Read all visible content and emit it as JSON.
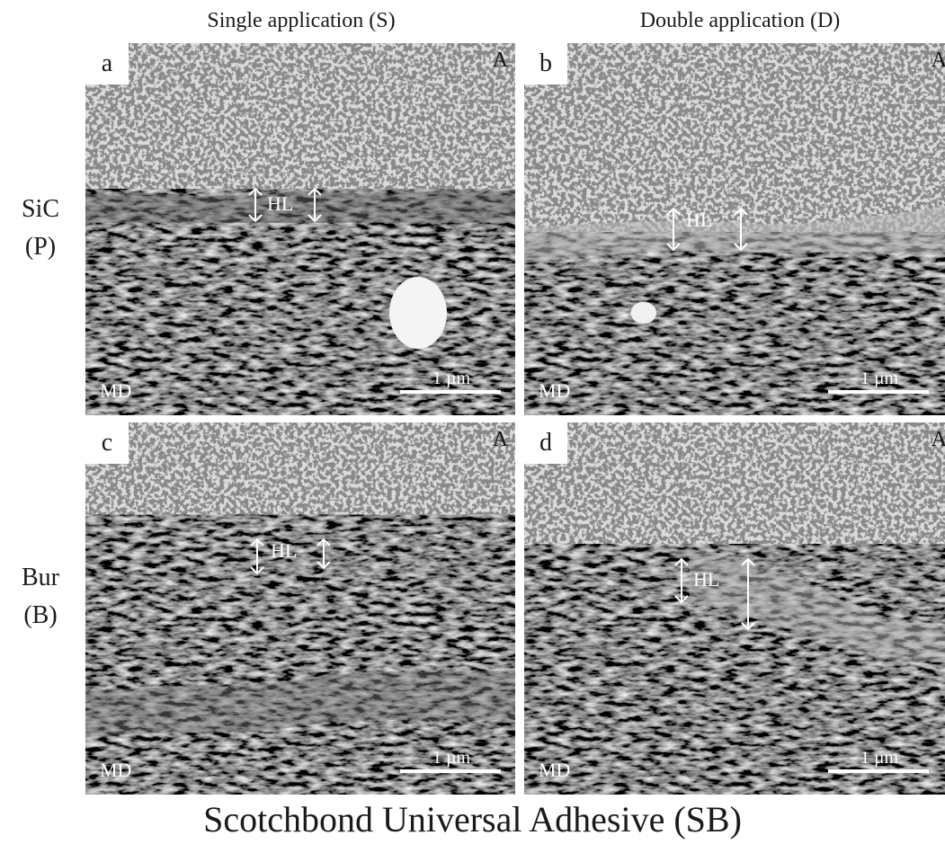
{
  "columns": {
    "single": "Single application (S)",
    "double": "Double application (D)"
  },
  "rows": {
    "sic": {
      "line1": "SiC",
      "line2": "(P)"
    },
    "bur": {
      "line1": "Bur",
      "line2": "(B)"
    }
  },
  "panels": {
    "a": {
      "letter": "a",
      "corner": "A",
      "md": "MD",
      "hl": "HL",
      "scale": "1 µm"
    },
    "b": {
      "letter": "b",
      "corner": "A",
      "md": "MD",
      "hl": "HL",
      "scale": "1 µm"
    },
    "c": {
      "letter": "c",
      "corner": "A",
      "md": "MD",
      "hl": "HL",
      "scale": "1 µm"
    },
    "d": {
      "letter": "d",
      "corner": "A",
      "md": "MD",
      "hl": "HL",
      "scale": "1 µm"
    }
  },
  "footer": "Scotchbond Universal Adhesive (SB)"
}
